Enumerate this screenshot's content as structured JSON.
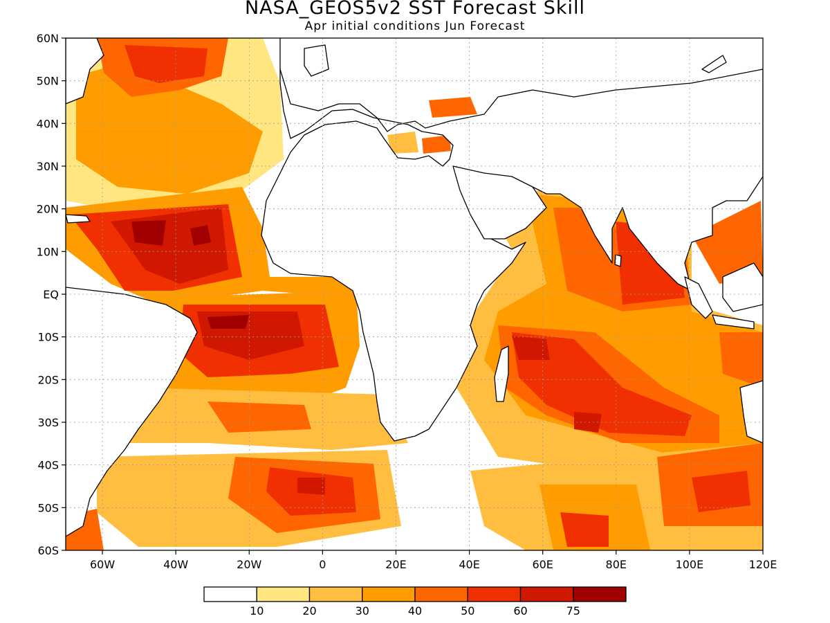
{
  "title": "NASA_GEOS5v2 SST Forecast Skill",
  "subtitle": "Apr initial conditions  Jun Forecast",
  "map": {
    "lon_range": [
      -70,
      120
    ],
    "lat_range": [
      -60,
      60
    ],
    "lat_ticks": [
      {
        "value": 60,
        "label": "60N"
      },
      {
        "value": 50,
        "label": "50N"
      },
      {
        "value": 40,
        "label": "40N"
      },
      {
        "value": 30,
        "label": "30N"
      },
      {
        "value": 20,
        "label": "20N"
      },
      {
        "value": 10,
        "label": "10N"
      },
      {
        "value": 0,
        "label": "EQ"
      },
      {
        "value": -10,
        "label": "10S"
      },
      {
        "value": -20,
        "label": "20S"
      },
      {
        "value": -30,
        "label": "30S"
      },
      {
        "value": -40,
        "label": "40S"
      },
      {
        "value": -50,
        "label": "50S"
      },
      {
        "value": -60,
        "label": "60S"
      }
    ],
    "lon_ticks": [
      {
        "value": -60,
        "label": "60W"
      },
      {
        "value": -40,
        "label": "40W"
      },
      {
        "value": -20,
        "label": "20W"
      },
      {
        "value": 0,
        "label": "0"
      },
      {
        "value": 20,
        "label": "20E"
      },
      {
        "value": 40,
        "label": "40E"
      },
      {
        "value": 60,
        "label": "60E"
      },
      {
        "value": 80,
        "label": "80E"
      },
      {
        "value": 100,
        "label": "100E"
      },
      {
        "value": 120,
        "label": "120E"
      }
    ],
    "grid": true
  },
  "colorbar": {
    "colors": [
      "#ffffff",
      "#ffe680",
      "#ffbe40",
      "#ff9c00",
      "#ff6600",
      "#f03000",
      "#d01800",
      "#a00000"
    ],
    "labels": [
      "10",
      "20",
      "30",
      "40",
      "50",
      "60",
      "75"
    ]
  }
}
